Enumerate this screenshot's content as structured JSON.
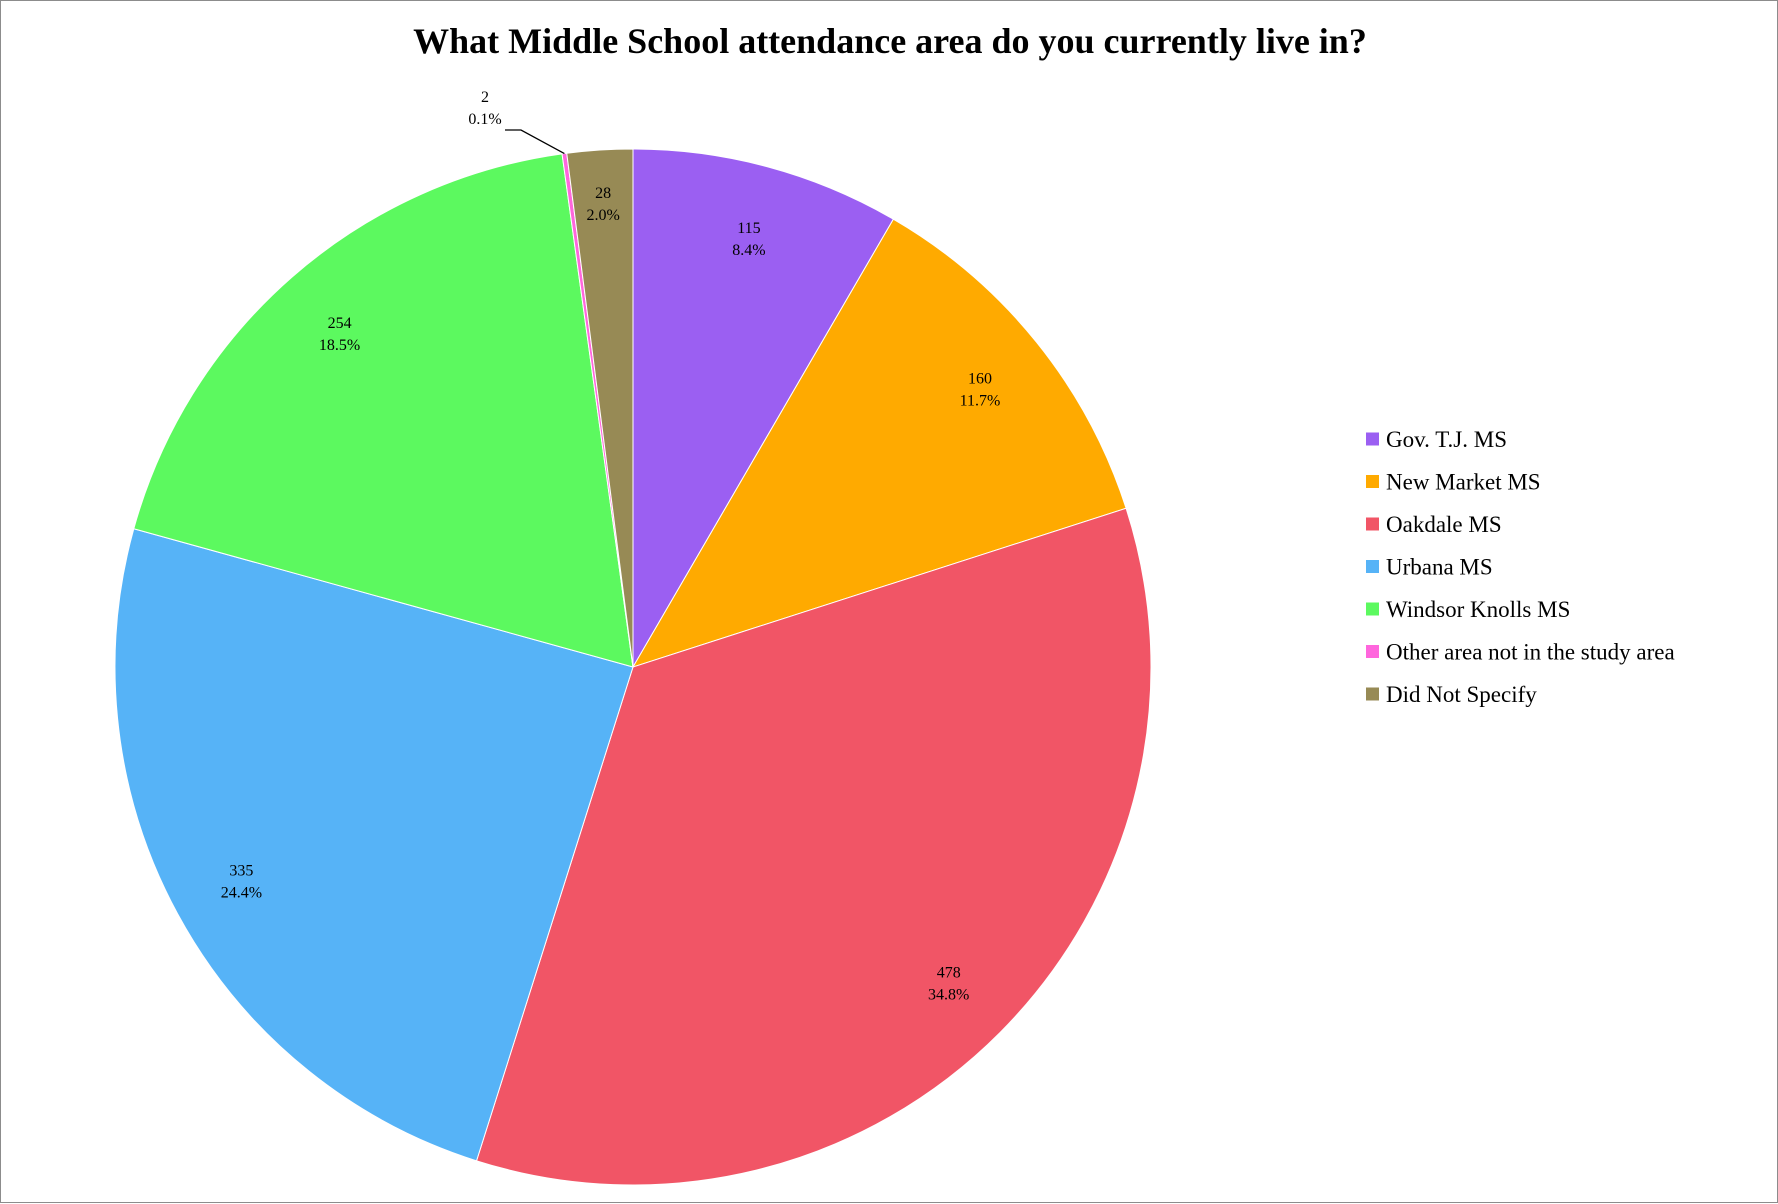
{
  "chart_data": {
    "type": "pie",
    "title": "What Middle School attendance area do you currently live in?",
    "legend_position": "right",
    "slices": [
      {
        "name": "Gov. T.J. MS",
        "value": 115,
        "percent": "8.4%",
        "color": "#9B5FF2"
      },
      {
        "name": "New Market MS",
        "value": 160,
        "percent": "11.7%",
        "color": "#FFAA00"
      },
      {
        "name": "Oakdale MS",
        "value": 478,
        "percent": "34.8%",
        "color": "#F15566"
      },
      {
        "name": "Urbana MS",
        "value": 335,
        "percent": "24.4%",
        "color": "#56B3F7"
      },
      {
        "name": "Windsor Knolls MS",
        "value": 254,
        "percent": "18.5%",
        "color": "#5CF95F"
      },
      {
        "name": "Other area not in the study area",
        "value": 2,
        "percent": "0.1%",
        "color": "#FF66DD"
      },
      {
        "name": "Did Not Specify",
        "value": 28,
        "percent": "2.0%",
        "color": "#978A55"
      }
    ]
  }
}
